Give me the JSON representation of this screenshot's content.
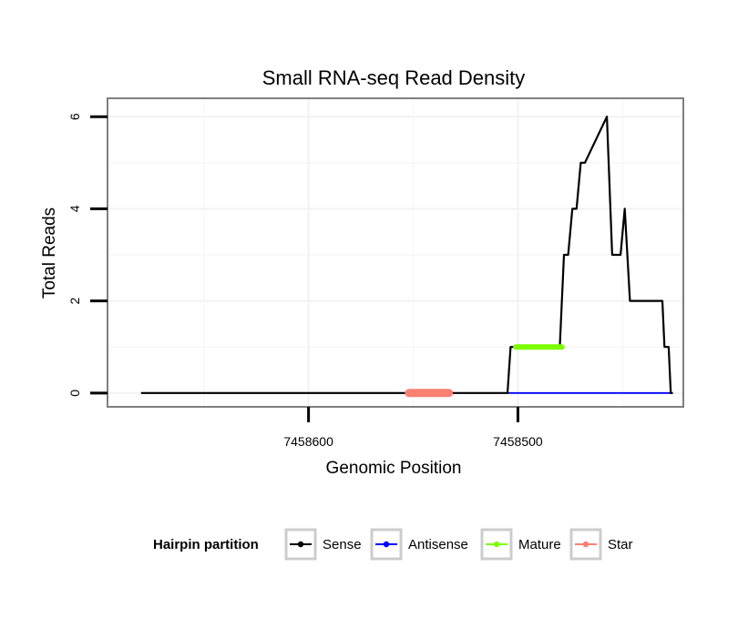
{
  "chart_data": {
    "type": "line",
    "title": "Small RNA-seq Read Density",
    "xlabel": "Genomic Position",
    "ylabel": "Total Reads",
    "x_reversed": true,
    "xlim": [
      7458696,
      7458421
    ],
    "ylim": [
      -0.3,
      6.4
    ],
    "x_ticks": [
      7458600,
      7458500
    ],
    "x_tick_labels": [
      "7458600",
      "7458500"
    ],
    "y_ticks": [
      0,
      2,
      4,
      6
    ],
    "y_tick_labels": [
      "0",
      "2",
      "4",
      "6"
    ],
    "grid": true,
    "series": [
      {
        "name": "Sense",
        "color": "#000000",
        "x": [
          7458680,
          7458505,
          7458503.5,
          7458480,
          7458478,
          7458476,
          7458474,
          7458472,
          7458470,
          7458468,
          7458457.5,
          7458455,
          7458451,
          7458449,
          7458446.5,
          7458445,
          7458444,
          7458442,
          7458431,
          7458430,
          7458428,
          7458427,
          7458426
        ],
        "y": [
          0,
          0,
          1,
          1,
          3,
          3,
          4,
          4,
          5,
          5,
          6,
          3,
          3,
          4,
          2,
          2,
          2,
          2,
          2,
          1,
          1,
          0,
          0
        ]
      },
      {
        "name": "Antisense",
        "color": "#0000ff",
        "x": [
          7458505,
          7458426
        ],
        "y": [
          0,
          0
        ]
      },
      {
        "name": "Mature",
        "color": "#7cfc00",
        "x": [
          7458501,
          7458479
        ],
        "y": [
          1,
          1
        ]
      },
      {
        "name": "Star",
        "color": "#fa8072",
        "x": [
          7458552,
          7458533
        ],
        "y": [
          0,
          0
        ]
      }
    ],
    "legend": {
      "title": "Hairpin partition",
      "position": "bottom",
      "entries": [
        {
          "label": "Sense",
          "color": "#000000"
        },
        {
          "label": "Antisense",
          "color": "#0000ff"
        },
        {
          "label": "Mature",
          "color": "#7cfc00"
        },
        {
          "label": "Star",
          "color": "#fa8072"
        }
      ]
    }
  }
}
